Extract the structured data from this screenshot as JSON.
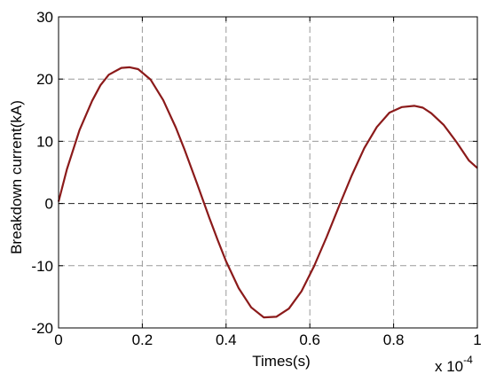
{
  "chart_data": {
    "type": "line",
    "xlabel": "Times(s)",
    "ylabel": "Breakdown current(kA)",
    "x_multiplier_label": "x 10",
    "x_multiplier_exponent": "-4",
    "xlim": [
      0,
      1
    ],
    "ylim": [
      -20,
      30
    ],
    "x_ticks": [
      0,
      0.2,
      0.4,
      0.6,
      0.8,
      1
    ],
    "x_tick_labels": [
      "0",
      "0.2",
      "0.4",
      "0.6",
      "0.8",
      "1"
    ],
    "y_ticks": [
      -20,
      -10,
      0,
      10,
      20,
      30
    ],
    "y_tick_labels": [
      "-20",
      "-10",
      "0",
      "10",
      "20",
      "30"
    ],
    "grid": true,
    "series": [
      {
        "color": "#8b1a1a",
        "x": [
          0,
          0.02,
          0.05,
          0.08,
          0.1,
          0.12,
          0.15,
          0.17,
          0.19,
          0.22,
          0.25,
          0.28,
          0.3,
          0.33,
          0.36,
          0.38,
          0.4,
          0.43,
          0.46,
          0.49,
          0.52,
          0.55,
          0.58,
          0.61,
          0.64,
          0.67,
          0.7,
          0.73,
          0.76,
          0.79,
          0.82,
          0.85,
          0.87,
          0.89,
          0.92,
          0.95,
          0.98,
          1.0
        ],
        "y": [
          0.3,
          5.5,
          11.8,
          16.5,
          19.0,
          20.7,
          21.8,
          21.9,
          21.6,
          19.9,
          16.6,
          12.2,
          8.8,
          3.3,
          -2.3,
          -5.9,
          -9.3,
          -13.6,
          -16.7,
          -18.3,
          -18.2,
          -16.9,
          -14.1,
          -10.1,
          -5.4,
          -0.4,
          4.5,
          8.9,
          12.3,
          14.6,
          15.5,
          15.7,
          15.4,
          14.5,
          12.6,
          9.9,
          6.9,
          5.7
        ]
      }
    ]
  }
}
